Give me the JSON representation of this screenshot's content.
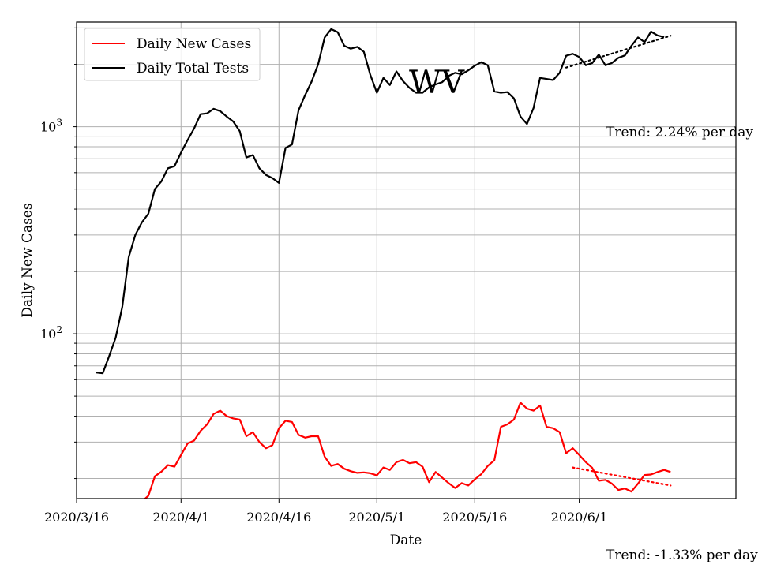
{
  "chart_data": {
    "type": "line",
    "title": "",
    "state_label": "WV",
    "xlabel": "Date",
    "ylabel": "Daily New Cases",
    "y_scale": "log",
    "ylim": [
      16,
      3200
    ],
    "xlim": [
      "2020-03-16",
      "2020-06-25"
    ],
    "x_ticks": [
      "2020/3/16",
      "2020/4/1",
      "2020/4/16",
      "2020/5/1",
      "2020/5/16",
      "2020/6/1"
    ],
    "y_ticks": [
      {
        "value": 100,
        "base": "10",
        "exp": "2"
      },
      {
        "value": 1000,
        "base": "10",
        "exp": "3"
      }
    ],
    "grid": true,
    "legend_position": "top-left",
    "colors": {
      "cases": "#ff0000",
      "tests": "#000000"
    },
    "series": [
      {
        "name": "Daily New Cases",
        "color": "#ff0000",
        "points": [
          [
            "2020-03-26",
            15.5
          ],
          [
            "2020-03-27",
            16.5
          ],
          [
            "2020-03-28",
            20.5
          ],
          [
            "2020-03-29",
            21.6
          ],
          [
            "2020-03-30",
            23.2
          ],
          [
            "2020-03-31",
            22.8
          ],
          [
            "2020-04-01",
            26.0
          ],
          [
            "2020-04-02",
            29.5
          ],
          [
            "2020-04-03",
            30.5
          ],
          [
            "2020-04-04",
            34.0
          ],
          [
            "2020-04-05",
            36.5
          ],
          [
            "2020-04-06",
            41.0
          ],
          [
            "2020-04-07",
            42.5
          ],
          [
            "2020-04-08",
            40.0
          ],
          [
            "2020-04-09",
            39.0
          ],
          [
            "2020-04-10",
            38.5
          ],
          [
            "2020-04-11",
            32.0
          ],
          [
            "2020-04-12",
            33.5
          ],
          [
            "2020-04-13",
            30.0
          ],
          [
            "2020-04-14",
            28.0
          ],
          [
            "2020-04-15",
            29.0
          ],
          [
            "2020-04-16",
            35.0
          ],
          [
            "2020-04-17",
            38.0
          ],
          [
            "2020-04-18",
            37.5
          ],
          [
            "2020-04-19",
            32.5
          ],
          [
            "2020-04-20",
            31.5
          ],
          [
            "2020-04-21",
            32.0
          ],
          [
            "2020-04-22",
            32.0
          ],
          [
            "2020-04-23",
            25.5
          ],
          [
            "2020-04-24",
            23.0
          ],
          [
            "2020-04-25",
            23.5
          ],
          [
            "2020-04-26",
            22.3
          ],
          [
            "2020-04-27",
            21.7
          ],
          [
            "2020-04-28",
            21.3
          ],
          [
            "2020-04-29",
            21.4
          ],
          [
            "2020-04-30",
            21.2
          ],
          [
            "2020-05-01",
            20.7
          ],
          [
            "2020-05-02",
            22.6
          ],
          [
            "2020-05-03",
            22.0
          ],
          [
            "2020-05-04",
            24.0
          ],
          [
            "2020-05-05",
            24.6
          ],
          [
            "2020-05-06",
            23.7
          ],
          [
            "2020-05-07",
            24.0
          ],
          [
            "2020-05-08",
            22.8
          ],
          [
            "2020-05-09",
            19.2
          ],
          [
            "2020-05-10",
            21.5
          ],
          [
            "2020-05-11",
            20.2
          ],
          [
            "2020-05-12",
            19.0
          ],
          [
            "2020-05-13",
            18.0
          ],
          [
            "2020-05-14",
            19.0
          ],
          [
            "2020-05-15",
            18.5
          ],
          [
            "2020-05-16",
            19.8
          ],
          [
            "2020-05-17",
            21.0
          ],
          [
            "2020-05-18",
            23.0
          ],
          [
            "2020-05-19",
            24.5
          ],
          [
            "2020-05-20",
            35.5
          ],
          [
            "2020-05-21",
            36.5
          ],
          [
            "2020-05-22",
            38.5
          ],
          [
            "2020-05-23",
            46.5
          ],
          [
            "2020-05-24",
            43.5
          ],
          [
            "2020-05-25",
            42.5
          ],
          [
            "2020-05-26",
            45.0
          ],
          [
            "2020-05-27",
            35.5
          ],
          [
            "2020-05-28",
            35.0
          ],
          [
            "2020-05-29",
            33.5
          ],
          [
            "2020-05-30",
            26.5
          ],
          [
            "2020-05-31",
            28.0
          ],
          [
            "2020-06-01",
            26.0
          ],
          [
            "2020-06-02",
            24.0
          ],
          [
            "2020-06-03",
            22.5
          ],
          [
            "2020-06-04",
            19.5
          ],
          [
            "2020-06-05",
            19.7
          ],
          [
            "2020-06-06",
            18.9
          ],
          [
            "2020-06-07",
            17.6
          ],
          [
            "2020-06-08",
            17.9
          ],
          [
            "2020-06-09",
            17.3
          ],
          [
            "2020-06-10",
            18.9
          ],
          [
            "2020-06-11",
            20.8
          ],
          [
            "2020-06-12",
            20.9
          ],
          [
            "2020-06-13",
            21.5
          ],
          [
            "2020-06-14",
            22.0
          ],
          [
            "2020-06-15",
            21.5
          ]
        ]
      },
      {
        "name": "Daily Total Tests",
        "color": "#000000",
        "points": [
          [
            "2020-03-19",
            65
          ],
          [
            "2020-03-20",
            64.5
          ],
          [
            "2020-03-21",
            78
          ],
          [
            "2020-03-22",
            96
          ],
          [
            "2020-03-23",
            135
          ],
          [
            "2020-03-24",
            235
          ],
          [
            "2020-03-25",
            300
          ],
          [
            "2020-03-26",
            345
          ],
          [
            "2020-03-27",
            380
          ],
          [
            "2020-03-28",
            500
          ],
          [
            "2020-03-29",
            545
          ],
          [
            "2020-03-30",
            630
          ],
          [
            "2020-03-31",
            645
          ],
          [
            "2020-04-01",
            750
          ],
          [
            "2020-04-02",
            860
          ],
          [
            "2020-04-03",
            980
          ],
          [
            "2020-04-04",
            1150
          ],
          [
            "2020-04-05",
            1160
          ],
          [
            "2020-04-06",
            1220
          ],
          [
            "2020-04-07",
            1190
          ],
          [
            "2020-04-08",
            1120
          ],
          [
            "2020-04-09",
            1060
          ],
          [
            "2020-04-10",
            950
          ],
          [
            "2020-04-11",
            710
          ],
          [
            "2020-04-12",
            730
          ],
          [
            "2020-04-13",
            630
          ],
          [
            "2020-04-14",
            585
          ],
          [
            "2020-04-15",
            565
          ],
          [
            "2020-04-16",
            535
          ],
          [
            "2020-04-17",
            790
          ],
          [
            "2020-04-18",
            820
          ],
          [
            "2020-04-19",
            1200
          ],
          [
            "2020-04-20",
            1420
          ],
          [
            "2020-04-21",
            1650
          ],
          [
            "2020-04-22",
            2000
          ],
          [
            "2020-04-23",
            2700
          ],
          [
            "2020-04-24",
            2960
          ],
          [
            "2020-04-25",
            2860
          ],
          [
            "2020-04-26",
            2460
          ],
          [
            "2020-04-27",
            2380
          ],
          [
            "2020-04-28",
            2430
          ],
          [
            "2020-04-29",
            2300
          ],
          [
            "2020-04-30",
            1780
          ],
          [
            "2020-05-01",
            1460
          ],
          [
            "2020-05-02",
            1720
          ],
          [
            "2020-05-03",
            1590
          ],
          [
            "2020-05-04",
            1850
          ],
          [
            "2020-05-05",
            1660
          ],
          [
            "2020-05-06",
            1540
          ],
          [
            "2020-05-07",
            1460
          ],
          [
            "2020-05-08",
            1460
          ],
          [
            "2020-05-09",
            1550
          ],
          [
            "2020-05-10",
            1600
          ],
          [
            "2020-05-11",
            1640
          ],
          [
            "2020-05-12",
            1760
          ],
          [
            "2020-05-13",
            1820
          ],
          [
            "2020-05-14",
            1790
          ],
          [
            "2020-05-15",
            1870
          ],
          [
            "2020-05-16",
            1970
          ],
          [
            "2020-05-17",
            2050
          ],
          [
            "2020-05-18",
            1980
          ],
          [
            "2020-05-19",
            1480
          ],
          [
            "2020-05-20",
            1460
          ],
          [
            "2020-05-21",
            1470
          ],
          [
            "2020-05-22",
            1370
          ],
          [
            "2020-05-23",
            1120
          ],
          [
            "2020-05-24",
            1030
          ],
          [
            "2020-05-25",
            1230
          ],
          [
            "2020-05-26",
            1720
          ],
          [
            "2020-05-27",
            1700
          ],
          [
            "2020-05-28",
            1680
          ],
          [
            "2020-05-29",
            1820
          ],
          [
            "2020-05-30",
            2200
          ],
          [
            "2020-05-31",
            2250
          ],
          [
            "2020-06-01",
            2170
          ],
          [
            "2020-06-02",
            1980
          ],
          [
            "2020-06-03",
            2030
          ],
          [
            "2020-06-04",
            2230
          ],
          [
            "2020-06-05",
            1980
          ],
          [
            "2020-06-06",
            2030
          ],
          [
            "2020-06-07",
            2150
          ],
          [
            "2020-06-08",
            2210
          ],
          [
            "2020-06-09",
            2460
          ],
          [
            "2020-06-10",
            2700
          ],
          [
            "2020-06-11",
            2560
          ],
          [
            "2020-06-12",
            2880
          ],
          [
            "2020-06-13",
            2760
          ],
          [
            "2020-06-14",
            2710
          ]
        ]
      }
    ],
    "trendlines": [
      {
        "color": "#ff0000",
        "style": "dotted",
        "points": [
          [
            "2020-05-31",
            22.6
          ],
          [
            "2020-06-15",
            18.5
          ]
        ]
      },
      {
        "color": "#000000",
        "style": "dotted",
        "points": [
          [
            "2020-05-30",
            1930
          ],
          [
            "2020-06-15",
            2750
          ]
        ]
      }
    ],
    "annotations": [
      {
        "text": "Trend: 2.24% per day"
      },
      {
        "text": "Trend: -1.33% per day"
      }
    ]
  }
}
